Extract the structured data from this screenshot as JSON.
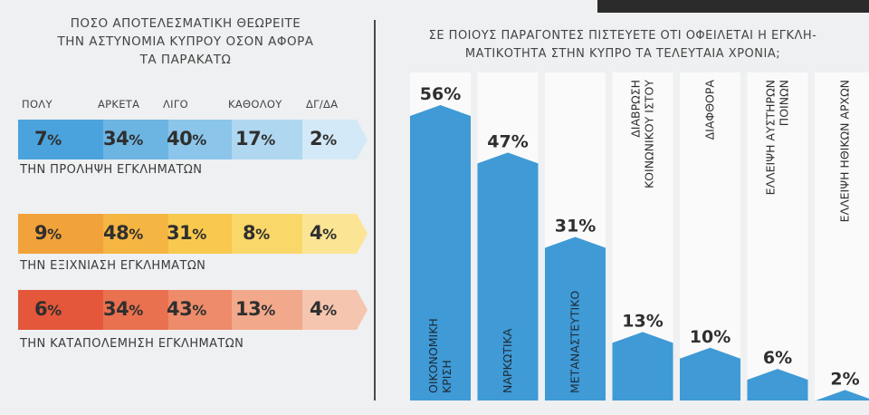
{
  "left": {
    "title_lines": [
      "ΠΟΣΟ ΑΠΟΤΕΛΕΣΜΑΤΙΚΗ ΘΕΩΡΕΙΤΕ",
      "ΤΗΝ ΑΣΤΥΝΟΜΙΑ ΚΥΠΡΟΥ ΟΣΟΝ ΑΦΟΡΑ",
      "ΤΑ ΠΑΡΑΚΑΤΩ"
    ],
    "columns": [
      "ΠΟΛΥ",
      "ΑΡΚΕΤΑ",
      "ΛΙΓΟ",
      "ΚΑΘΟΛΟΥ",
      "ΔΓ/ΔΑ"
    ],
    "rows": [
      {
        "label": "ΤΗΝ ΠΡΟΛΗΨΗ ΕΓΚΛΗΜΑΤΩΝ",
        "values": [
          "7",
          "34",
          "40",
          "17",
          "2"
        ],
        "colors": [
          "#4aa3dc",
          "#6cb5e2",
          "#8cc5ea",
          "#b0d7f0",
          "#d4e9f7"
        ]
      },
      {
        "label": "ΤΗΝ ΕΞΙΧΝΙΑΣΗ ΕΓΚΛΗΜΑΤΩΝ",
        "values": [
          "9",
          "48",
          "31",
          "8",
          "4"
        ],
        "colors": [
          "#f2a23a",
          "#f5b542",
          "#f8c94e",
          "#fad769",
          "#fbe594"
        ]
      },
      {
        "label": "ΤΗΝ ΚΑΤΑΠΟΛΕΜΗΣΗ ΕΓΚΛΗΜΑΤΩΝ",
        "values": [
          "6",
          "34",
          "43",
          "13",
          "4"
        ],
        "colors": [
          "#e4573a",
          "#e9714f",
          "#ee8b6a",
          "#f2a88b",
          "#f6c5b0"
        ]
      }
    ],
    "pct_sign": "%"
  },
  "chart_data": {
    "type": "bar",
    "title_lines": [
      "ΣΕ ΠΟΙΟΥΣ ΠΑΡΑΓΟΝΤΕΣ ΠΙΣΤΕΥΕΤΕ ΟΤΙ ΟΦΕΙΛΕΤΑΙ Η ΕΓΚΛΗ-",
      "ΜΑΤΙΚΟΤΗΤΑ ΣΤΗΝ ΚΥΠΡΟ ΤΑ ΤΕΛΕΥΤΑΙΑ ΧΡΟΝΙΑ;"
    ],
    "categories": [
      [
        "ΟΙΚΟΝΟΜΙΚΗ",
        "ΚΡΙΣΗ"
      ],
      [
        "ΝΑΡΚΩΤΙΚΑ"
      ],
      [
        "ΜΕΤΑΝΑΣΤΕΥΤΙΚΟ"
      ],
      [
        "ΔΙΑΒΡΩΣΗ",
        "ΚΟΙΝΩΝΙΚΟΥ ΙΣΤΟΥ"
      ],
      [
        "ΔΙΑΦΘΟΡΑ"
      ],
      [
        "ΕΛΛΕΙΨΗ ΑΥΣΤΗΡΩΝ",
        "ΠΟΙΝΩΝ"
      ],
      [
        "ΕΛΛΕΙΨΗ ΗΘΙΚΩΝ ΑΡΧΩΝ"
      ]
    ],
    "values": [
      56,
      47,
      31,
      13,
      10,
      6,
      2
    ],
    "value_labels": [
      "56%",
      "47%",
      "31%",
      "13%",
      "10%",
      "6%",
      "2%"
    ],
    "ylim": [
      0,
      56
    ],
    "bar_color": "#3f9ad6",
    "column_color": "#fafafa"
  }
}
